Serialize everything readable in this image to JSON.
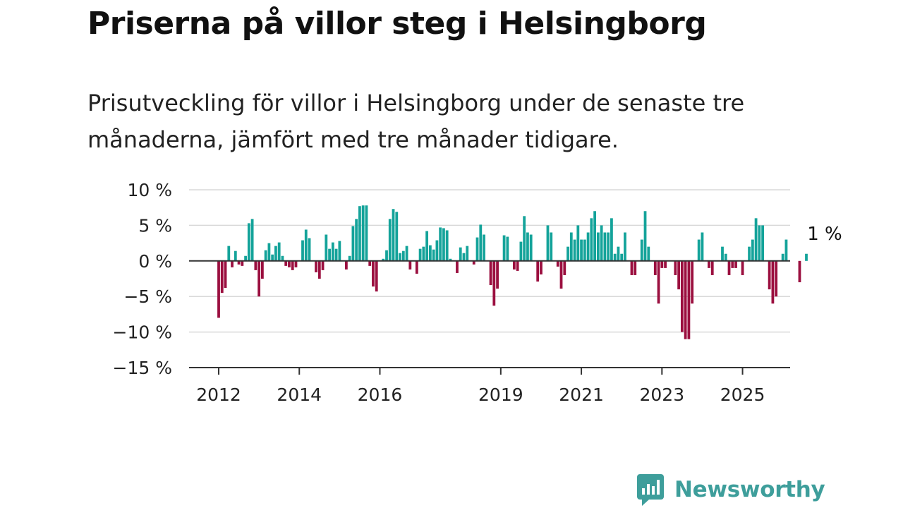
{
  "header": {
    "title": "Priserna på villor steg i Helsingborg",
    "subtitle": "Prisutveckling för villor i Helsingborg under de senaste tre månaderna, jämfört med tre månader tidigare."
  },
  "brand": {
    "name": "Newsworthy",
    "icon": "newsworthy-logo-icon",
    "color": "#3e9e9b"
  },
  "chart_data": {
    "type": "bar",
    "x_start": "2012-01",
    "x_step": "month",
    "x_ticks": [
      "2012",
      "2014",
      "2016",
      "2019",
      "2021",
      "2023",
      "2025"
    ],
    "y_ticks": [
      "10 %",
      "5 %",
      "0 %",
      "−5 %",
      "−10 %",
      "−15 %"
    ],
    "y_tick_values": [
      10,
      5,
      0,
      -5,
      -10,
      -15
    ],
    "ylim": [
      -15,
      10
    ],
    "grid": true,
    "colors": {
      "positive": "#14a39a",
      "negative": "#9b0f3f"
    },
    "annotation": {
      "text": "1 %"
    },
    "values": [
      -8,
      -4.5,
      -3.8,
      2.1,
      -0.9,
      1.4,
      -0.5,
      -0.7,
      0.7,
      5.3,
      5.9,
      -1.3,
      -5,
      -2.5,
      1.5,
      2.5,
      0.9,
      2.1,
      2.6,
      0.7,
      -0.7,
      -0.9,
      -1.3,
      -0.9,
      0,
      2.9,
      4.4,
      3.2,
      0,
      -1.6,
      -2.5,
      -1.3,
      3.7,
      1.7,
      2.6,
      1.7,
      2.8,
      0,
      -1.2,
      0.7,
      4.9,
      5.9,
      7.7,
      7.8,
      7.8,
      -0.7,
      -3.6,
      -4.3,
      0,
      0.3,
      1.5,
      5.9,
      7.3,
      6.9,
      1.1,
      1.4,
      2.1,
      -1.2,
      0,
      -1.8,
      1.7,
      2,
      4.2,
      2.2,
      1.6,
      2.9,
      4.7,
      4.6,
      4.3,
      0.3,
      0,
      -1.7,
      1.9,
      1.1,
      2.1,
      0,
      -0.5,
      3.3,
      5.1,
      3.7,
      0,
      -3.4,
      -6.3,
      -3.9,
      0,
      3.6,
      3.4,
      0,
      -1.2,
      -1.4,
      2.7,
      6.3,
      4,
      3.7,
      0,
      -2.9,
      -1.9,
      0,
      5,
      4,
      0,
      -0.8,
      -3.9,
      -2,
      2,
      4,
      3,
      5,
      3,
      3,
      4,
      6,
      7,
      4,
      5,
      4,
      4,
      6,
      1,
      2,
      1,
      4,
      0,
      -2,
      -2,
      0,
      3,
      7,
      2,
      0,
      -2,
      -6,
      -1,
      -1,
      0,
      0,
      -2,
      -4,
      -10,
      -11,
      -11,
      -6,
      0,
      3,
      4,
      0,
      -1,
      -2,
      0,
      0,
      2,
      1,
      -2,
      -1,
      -1,
      0,
      -2,
      0,
      2,
      3,
      6,
      5,
      5,
      0,
      -4,
      -6,
      -5,
      0,
      1,
      3,
      0,
      0,
      0,
      -3,
      0,
      1
    ]
  }
}
